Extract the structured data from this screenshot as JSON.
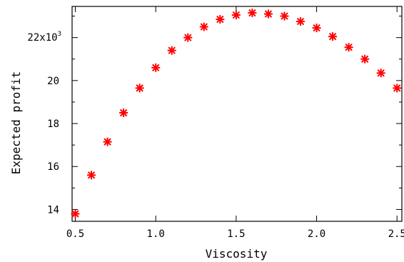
{
  "chart_data": {
    "type": "scatter",
    "title": "",
    "xlabel": "Viscosity",
    "ylabel": "Expected profit",
    "y_multiplier_label": {
      "base": "22x10",
      "exponent": "3"
    },
    "xlim": [
      0.48,
      2.53
    ],
    "ylim": [
      13.45,
      23.45
    ],
    "x_ticks": [
      0.5,
      1.0,
      1.5,
      2.0,
      2.5
    ],
    "x_tick_labels": [
      "0.5",
      "1.0",
      "1.5",
      "2.0",
      "2.5"
    ],
    "y_ticks": [
      14,
      16,
      18,
      20,
      22
    ],
    "y_tick_labels": [
      "14",
      "16",
      "18",
      "20",
      ""
    ],
    "y_minor_ticks": [
      15,
      17,
      19,
      21,
      23
    ],
    "marker": "asterisk",
    "marker_color": "#ff0000",
    "grid": false,
    "series": [
      {
        "x": [
          0.5,
          0.6,
          0.7,
          0.8,
          0.9,
          1.0,
          1.1,
          1.2,
          1.3,
          1.4,
          1.5,
          1.6,
          1.7,
          1.8,
          1.9,
          2.0,
          2.1,
          2.2,
          2.3,
          2.4,
          2.5
        ],
        "y": [
          13.8,
          15.6,
          17.15,
          18.5,
          19.65,
          20.6,
          21.4,
          22.0,
          22.5,
          22.85,
          23.05,
          23.15,
          23.1,
          23.0,
          22.75,
          22.45,
          22.05,
          21.55,
          21.0,
          20.35,
          19.65
        ]
      }
    ]
  }
}
